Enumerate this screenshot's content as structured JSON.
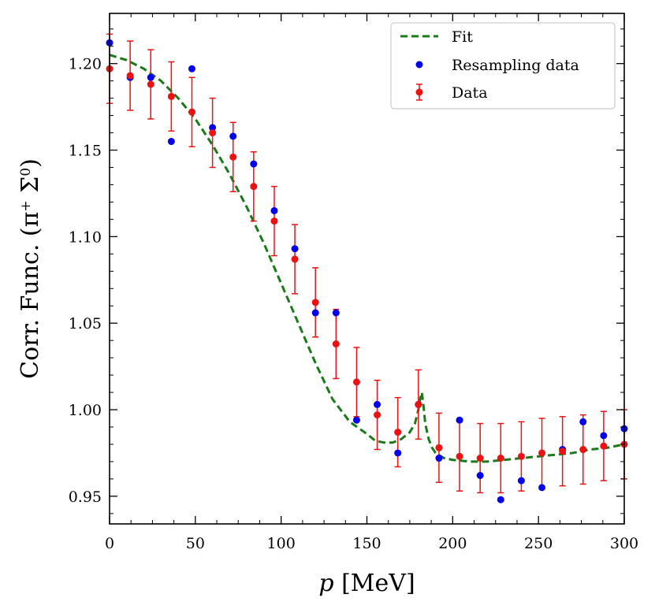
{
  "chart_data": {
    "type": "scatter",
    "xlabel_var": "p",
    "xlabel_unit": " [MeV]",
    "ylabel_main": "Corr. Func. (π",
    "ylabel_sup1": "+",
    "ylabel_mid": " Σ",
    "ylabel_sup2": "0",
    "ylabel_end": ")",
    "xlim": [
      0,
      300
    ],
    "ylim": [
      0.934,
      1.229
    ],
    "xticks": [
      0,
      50,
      100,
      150,
      200,
      250,
      300
    ],
    "xtick_labels": [
      "0",
      "50",
      "100",
      "150",
      "200",
      "250",
      "300"
    ],
    "yticks": [
      0.95,
      1.0,
      1.05,
      1.1,
      1.15,
      1.2
    ],
    "ytick_labels": [
      "0.95",
      "1.00",
      "1.05",
      "1.10",
      "1.15",
      "1.20"
    ],
    "legend": {
      "fit": "Fit",
      "resampling": "Resampling data",
      "data": "Data",
      "position": "upper-right"
    },
    "colors": {
      "fit": "#1a7a1a",
      "resampling": "#0000ee",
      "data": "#ee1111"
    },
    "data": {
      "name": "Data",
      "x": [
        0,
        12,
        24,
        36,
        48,
        60,
        72,
        84,
        96,
        108,
        120,
        132,
        144,
        156,
        168,
        180,
        192,
        204,
        216,
        228,
        240,
        252,
        264,
        276,
        288,
        300
      ],
      "y": [
        1.197,
        1.193,
        1.188,
        1.181,
        1.172,
        1.16,
        1.146,
        1.129,
        1.109,
        1.087,
        1.062,
        1.038,
        1.016,
        0.997,
        0.987,
        1.003,
        0.978,
        0.973,
        0.972,
        0.972,
        0.973,
        0.975,
        0.976,
        0.977,
        0.979,
        0.98
      ],
      "err": [
        0.02,
        0.02,
        0.02,
        0.02,
        0.02,
        0.02,
        0.02,
        0.02,
        0.02,
        0.02,
        0.02,
        0.02,
        0.02,
        0.02,
        0.02,
        0.02,
        0.02,
        0.02,
        0.02,
        0.02,
        0.02,
        0.02,
        0.02,
        0.02,
        0.02,
        0.02
      ]
    },
    "resampling": {
      "name": "Resampling data",
      "x": [
        0,
        12,
        24,
        36,
        48,
        60,
        72,
        84,
        96,
        108,
        120,
        132,
        144,
        156,
        168,
        180,
        192,
        204,
        216,
        228,
        240,
        252,
        264,
        276,
        288,
        300
      ],
      "y": [
        1.212,
        1.192,
        1.192,
        1.155,
        1.197,
        1.163,
        1.158,
        1.142,
        1.115,
        1.093,
        1.056,
        1.056,
        0.994,
        1.003,
        0.975,
        1.003,
        0.972,
        0.994,
        0.962,
        0.948,
        0.959,
        0.955,
        0.977,
        0.993,
        0.985,
        0.989
      ]
    },
    "fit": {
      "name": "Fit",
      "x": [
        0,
        10,
        20,
        30,
        40,
        50,
        60,
        70,
        80,
        90,
        100,
        110,
        120,
        130,
        140,
        150,
        155,
        160,
        165,
        170,
        175,
        178,
        180,
        181,
        182,
        183,
        184,
        186,
        188,
        190,
        195,
        200,
        210,
        220,
        230,
        240,
        250,
        260,
        270,
        280,
        290,
        300
      ],
      "y": [
        1.205,
        1.202,
        1.197,
        1.19,
        1.18,
        1.168,
        1.153,
        1.136,
        1.117,
        1.096,
        1.073,
        1.05,
        1.027,
        1.006,
        0.993,
        0.986,
        0.982,
        0.981,
        0.981,
        0.983,
        0.987,
        0.992,
        1.0,
        1.006,
        1.01,
        1.002,
        0.992,
        0.983,
        0.978,
        0.975,
        0.972,
        0.971,
        0.97,
        0.97,
        0.971,
        0.972,
        0.973,
        0.974,
        0.975,
        0.977,
        0.978,
        0.98
      ]
    }
  }
}
